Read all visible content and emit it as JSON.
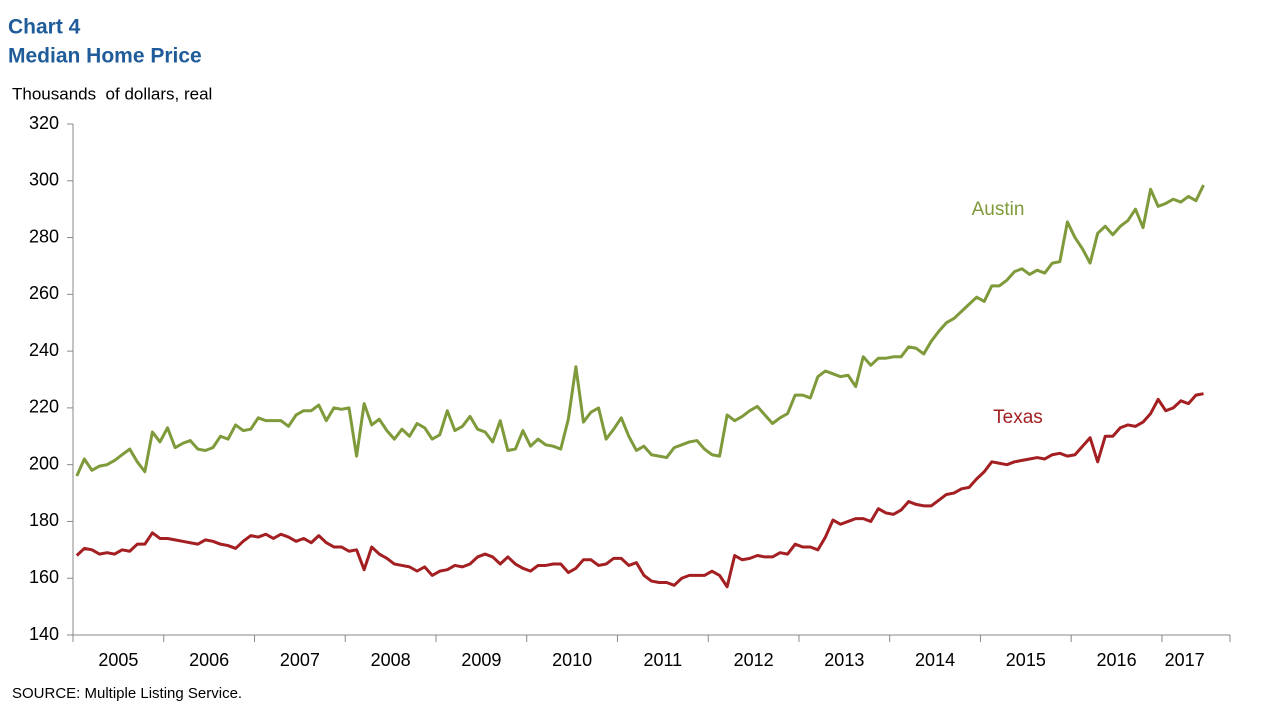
{
  "chart_data": {
    "type": "line",
    "title": "Chart 4",
    "subtitle": "Median Home Price",
    "y_label": "Thousands  of dollars, real",
    "source": "SOURCE: Multiple Listing Service.",
    "categories": [
      null,
      null,
      null,
      null,
      null,
      null,
      "2005",
      null,
      null,
      null,
      null,
      null,
      null,
      null,
      null,
      null,
      null,
      null,
      "2006",
      null,
      null,
      null,
      null,
      null,
      null,
      null,
      null,
      null,
      null,
      null,
      "2007",
      null,
      null,
      null,
      null,
      null,
      null,
      null,
      null,
      null,
      null,
      null,
      "2008",
      null,
      null,
      null,
      null,
      null,
      null,
      null,
      null,
      null,
      null,
      null,
      "2009",
      null,
      null,
      null,
      null,
      null,
      null,
      null,
      null,
      null,
      null,
      null,
      "2010",
      null,
      null,
      null,
      null,
      null,
      null,
      null,
      null,
      null,
      null,
      null,
      "2011",
      null,
      null,
      null,
      null,
      null,
      null,
      null,
      null,
      null,
      null,
      null,
      "2012",
      null,
      null,
      null,
      null,
      null,
      null,
      null,
      null,
      null,
      null,
      null,
      "2013",
      null,
      null,
      null,
      null,
      null,
      null,
      null,
      null,
      null,
      null,
      null,
      "2014",
      null,
      null,
      null,
      null,
      null,
      null,
      null,
      null,
      null,
      null,
      null,
      "2015",
      null,
      null,
      null,
      null,
      null,
      null,
      null,
      null,
      null,
      null,
      null,
      "2016",
      null,
      null,
      null,
      null,
      null,
      null,
      null,
      null,
      "2017",
      null,
      null
    ],
    "series": [
      {
        "name": "Austin",
        "color": "#7f9a3a",
        "values": [
          196,
          202,
          198,
          199.5,
          200,
          201.5,
          203.5,
          205.5,
          201,
          197.5,
          211.5,
          208,
          213,
          206,
          207.5,
          208.5,
          205.5,
          205,
          206,
          210,
          209,
          214,
          212,
          212.5,
          216.5,
          215.5,
          215.5,
          215.5,
          213.5,
          217.5,
          219,
          219,
          221,
          215.5,
          220,
          219.5,
          220,
          203,
          221.5,
          214,
          216,
          212,
          209,
          212.5,
          210,
          214.5,
          213,
          209,
          210.5,
          219,
          212,
          213.5,
          217,
          212.5,
          211.5,
          208,
          215.5,
          205,
          205.5,
          212,
          206.5,
          209,
          207,
          206.5,
          205.5,
          216,
          234.5,
          215,
          218.5,
          220,
          209,
          212.5,
          216.5,
          210,
          205,
          206.5,
          203.5,
          203,
          202.5,
          206,
          207,
          208,
          208.5,
          205.5,
          203.5,
          203,
          217.5,
          215.5,
          217,
          219,
          220.5,
          217.5,
          214.5,
          216.5,
          218,
          224.5,
          224.5,
          223.5,
          231,
          233,
          232,
          231,
          231.5,
          227.5,
          238,
          235,
          237.5,
          237.5,
          238,
          238,
          241.5,
          241,
          239,
          243.5,
          247,
          250,
          251.5,
          254,
          256.5,
          259,
          257.5,
          263,
          263,
          265,
          268,
          269,
          267,
          268.5,
          267.5,
          271,
          271.5,
          285.5,
          280,
          276,
          271,
          281.5,
          284,
          281,
          284,
          286,
          290,
          283.5,
          297,
          291,
          292,
          293.5,
          292.5,
          294.5,
          293,
          298.5
        ]
      },
      {
        "name": "Texas",
        "color": "#a31f22",
        "values": [
          168,
          170.5,
          170,
          168.5,
          169,
          168.5,
          170,
          169.5,
          172,
          172,
          176,
          174,
          174,
          173.5,
          173,
          172.5,
          172,
          173.5,
          173,
          172,
          171.5,
          170.5,
          173,
          175,
          174.5,
          175.5,
          174,
          175.5,
          174.5,
          173,
          174,
          172.5,
          175,
          172.5,
          171,
          171,
          169.5,
          170,
          163,
          171,
          168.5,
          167,
          165,
          164.5,
          164,
          162.5,
          164,
          161,
          162.5,
          163,
          164.5,
          164,
          165,
          167.5,
          168.5,
          167.5,
          165,
          167.5,
          165,
          163.5,
          162.5,
          164.5,
          164.5,
          165,
          165,
          162,
          163.5,
          166.5,
          166.5,
          164.5,
          165,
          167,
          167,
          164.5,
          165.5,
          161,
          159,
          158.5,
          158.5,
          157.5,
          160,
          161,
          161,
          161,
          162.5,
          161,
          157,
          168,
          166.5,
          167,
          168,
          167.5,
          167.5,
          169,
          168.5,
          172,
          171,
          171,
          170,
          174.5,
          180.5,
          179,
          180,
          181,
          181,
          180,
          184.5,
          183,
          182.5,
          184,
          187,
          186,
          185.5,
          185.5,
          187.5,
          189.5,
          190,
          191.5,
          192,
          195,
          197.5,
          201,
          200.5,
          200,
          201,
          201.5,
          202,
          202.5,
          202,
          203.5,
          204,
          203,
          203.5,
          206.5,
          209.5,
          201,
          210,
          210,
          213,
          214,
          213.5,
          215,
          218,
          223,
          219,
          220,
          222.5,
          221.5,
          224.5,
          225
        ]
      }
    ],
    "ylim": [
      140,
      320
    ],
    "yticks": [
      140,
      160,
      180,
      200,
      220,
      240,
      260,
      280,
      300,
      320
    ],
    "grid": false
  }
}
